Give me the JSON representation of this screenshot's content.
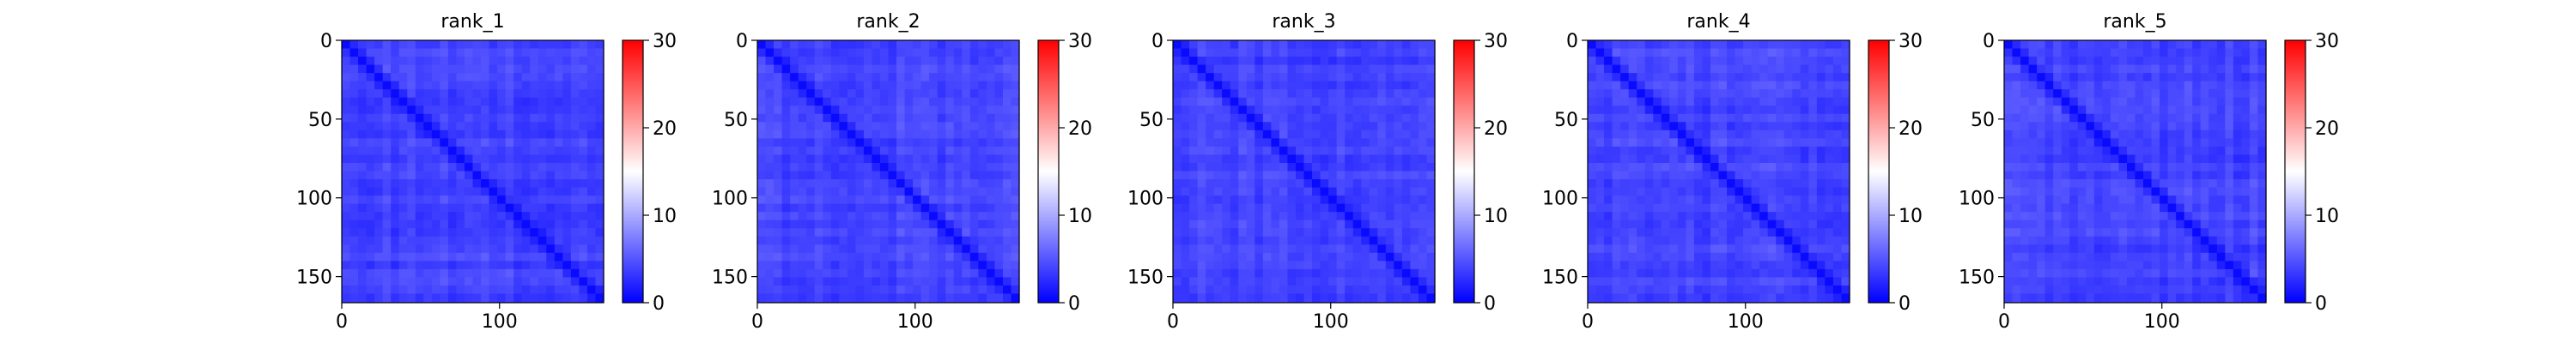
{
  "chart_data": [
    {
      "type": "heatmap",
      "title": "rank_1",
      "n": 166,
      "xticks": [
        0,
        100
      ],
      "yticks": [
        0,
        50,
        100,
        150
      ],
      "colorbar": {
        "ticks": [
          0,
          10,
          20,
          30
        ],
        "range": [
          0,
          30
        ],
        "colormap": "bwr"
      }
    },
    {
      "type": "heatmap",
      "title": "rank_2",
      "n": 166,
      "xticks": [
        0,
        100
      ],
      "yticks": [
        0,
        50,
        100,
        150
      ],
      "colorbar": {
        "ticks": [
          0,
          10,
          20,
          30
        ],
        "range": [
          0,
          30
        ],
        "colormap": "bwr"
      }
    },
    {
      "type": "heatmap",
      "title": "rank_3",
      "n": 166,
      "xticks": [
        0,
        100
      ],
      "yticks": [
        0,
        50,
        100,
        150
      ],
      "colorbar": {
        "ticks": [
          0,
          10,
          20,
          30
        ],
        "range": [
          0,
          30
        ],
        "colormap": "bwr"
      }
    },
    {
      "type": "heatmap",
      "title": "rank_4",
      "n": 166,
      "xticks": [
        0,
        100
      ],
      "yticks": [
        0,
        50,
        100,
        150
      ],
      "colorbar": {
        "ticks": [
          0,
          10,
          20,
          30
        ],
        "range": [
          0,
          30
        ],
        "colormap": "bwr"
      }
    },
    {
      "type": "heatmap",
      "title": "rank_5",
      "n": 166,
      "xticks": [
        0,
        100
      ],
      "yticks": [
        0,
        50,
        100,
        150
      ],
      "colorbar": {
        "ticks": [
          0,
          10,
          20,
          30
        ],
        "range": [
          0,
          30
        ],
        "colormap": "bwr"
      }
    }
  ],
  "colors": {
    "low": "#0000ff",
    "mid": "#ffffff",
    "high": "#ff0000",
    "axis": "#000000"
  }
}
